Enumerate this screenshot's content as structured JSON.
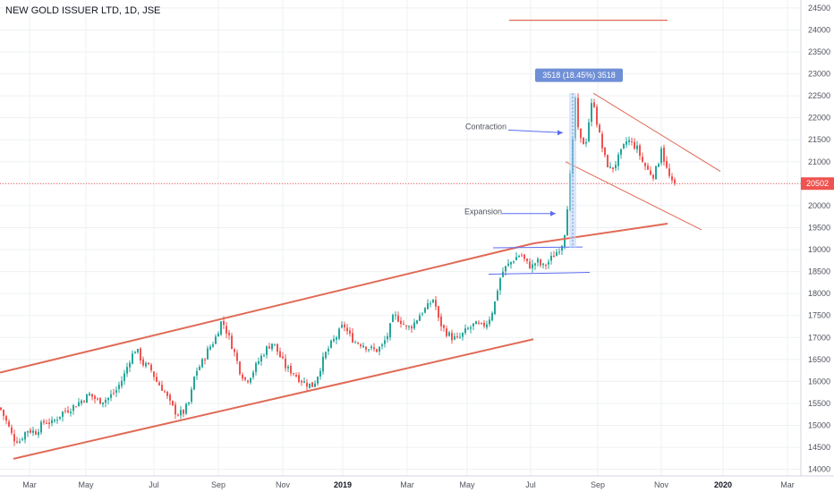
{
  "header": {
    "title": "NEW GOLD ISSUER LTD, 1D, JSE"
  },
  "colors": {
    "up": "#26a69a",
    "down": "#ef5350",
    "trend": "#e06a56",
    "range": "#5b6cf0",
    "measure": "#6f8fd6",
    "price_line": "#ef5350",
    "grid": "#eef0f3"
  },
  "chart_data": {
    "type": "candlestick",
    "title": "NEW GOLD ISSUER LTD, 1D, JSE",
    "x_ticks": [
      "Mar",
      "May",
      "Jul",
      "Sep",
      "Nov",
      "2019",
      "Mar",
      "May",
      "Jul",
      "Sep",
      "Nov",
      "2020",
      "Mar"
    ],
    "y_ticks": [
      14000,
      14500,
      15000,
      15500,
      16000,
      16500,
      17000,
      17500,
      18000,
      18500,
      19000,
      19500,
      20000,
      20500,
      21000,
      21500,
      22000,
      22500,
      23000,
      23500,
      24000,
      24500
    ],
    "ylim": [
      13850,
      24680
    ],
    "current_price": {
      "value": 20502,
      "label": "20502"
    },
    "price_path": [
      [
        0,
        15400
      ],
      [
        8,
        15050
      ],
      [
        15,
        14700
      ],
      [
        22,
        14650
      ],
      [
        30,
        14900
      ],
      [
        40,
        14850
      ],
      [
        50,
        15100
      ],
      [
        58,
        15050
      ],
      [
        70,
        15300
      ],
      [
        80,
        15400
      ],
      [
        90,
        15550
      ],
      [
        100,
        15700
      ],
      [
        110,
        15550
      ],
      [
        120,
        15600
      ],
      [
        130,
        15800
      ],
      [
        138,
        16100
      ],
      [
        145,
        16500
      ],
      [
        152,
        16750
      ],
      [
        160,
        16400
      ],
      [
        168,
        16300
      ],
      [
        175,
        16000
      ],
      [
        183,
        15800
      ],
      [
        190,
        15500
      ],
      [
        198,
        15250
      ],
      [
        205,
        15300
      ],
      [
        212,
        15550
      ],
      [
        218,
        16200
      ],
      [
        225,
        16400
      ],
      [
        232,
        16700
      ],
      [
        240,
        16950
      ],
      [
        248,
        17400
      ],
      [
        255,
        17050
      ],
      [
        262,
        16650
      ],
      [
        268,
        16250
      ],
      [
        275,
        16000
      ],
      [
        282,
        16200
      ],
      [
        290,
        16500
      ],
      [
        298,
        16750
      ],
      [
        305,
        16900
      ],
      [
        312,
        16600
      ],
      [
        320,
        16300
      ],
      [
        328,
        16200
      ],
      [
        335,
        16050
      ],
      [
        342,
        15950
      ],
      [
        350,
        15900
      ],
      [
        356,
        16200
      ],
      [
        363,
        16600
      ],
      [
        370,
        16850
      ],
      [
        377,
        17050
      ],
      [
        384,
        17300
      ],
      [
        390,
        17050
      ],
      [
        397,
        16900
      ],
      [
        405,
        16850
      ],
      [
        413,
        16750
      ],
      [
        420,
        16700
      ],
      [
        427,
        16800
      ],
      [
        433,
        17050
      ],
      [
        440,
        17500
      ],
      [
        447,
        17400
      ],
      [
        455,
        17200
      ],
      [
        462,
        17300
      ],
      [
        470,
        17550
      ],
      [
        478,
        17700
      ],
      [
        485,
        17900
      ],
      [
        490,
        17400
      ],
      [
        497,
        17150
      ],
      [
        505,
        17000
      ],
      [
        512,
        16950
      ],
      [
        518,
        17100
      ],
      [
        524,
        17200
      ],
      [
        530,
        17300
      ],
      [
        538,
        17250
      ],
      [
        545,
        17350
      ],
      [
        552,
        17700
      ],
      [
        558,
        18300
      ],
      [
        563,
        18550
      ],
      [
        568,
        18650
      ],
      [
        575,
        18800
      ],
      [
        582,
        18900
      ],
      [
        588,
        18700
      ],
      [
        594,
        18600
      ],
      [
        600,
        18750
      ],
      [
        606,
        18600
      ],
      [
        612,
        18700
      ],
      [
        618,
        18850
      ],
      [
        624,
        19000
      ],
      [
        630,
        19200
      ],
      [
        634,
        20000
      ],
      [
        638,
        20900
      ],
      [
        641,
        21700
      ],
      [
        643,
        22450
      ],
      [
        646,
        21700
      ],
      [
        650,
        21400
      ],
      [
        655,
        21500
      ],
      [
        660,
        22200
      ],
      [
        663,
        22450
      ],
      [
        667,
        21900
      ],
      [
        672,
        21400
      ],
      [
        677,
        21000
      ],
      [
        683,
        20800
      ],
      [
        689,
        21000
      ],
      [
        695,
        21250
      ],
      [
        701,
        21500
      ],
      [
        707,
        21400
      ],
      [
        712,
        21300
      ],
      [
        718,
        21000
      ],
      [
        724,
        20800
      ],
      [
        730,
        20700
      ],
      [
        735,
        20900
      ],
      [
        739,
        21350
      ],
      [
        743,
        20950
      ],
      [
        748,
        20650
      ],
      [
        752,
        20450
      ],
      [
        756,
        20502
      ]
    ]
  },
  "annotations": {
    "contraction": "Contraction",
    "expansion": "Expansion",
    "measure_badge": "3518 (18.45%) 3518"
  }
}
